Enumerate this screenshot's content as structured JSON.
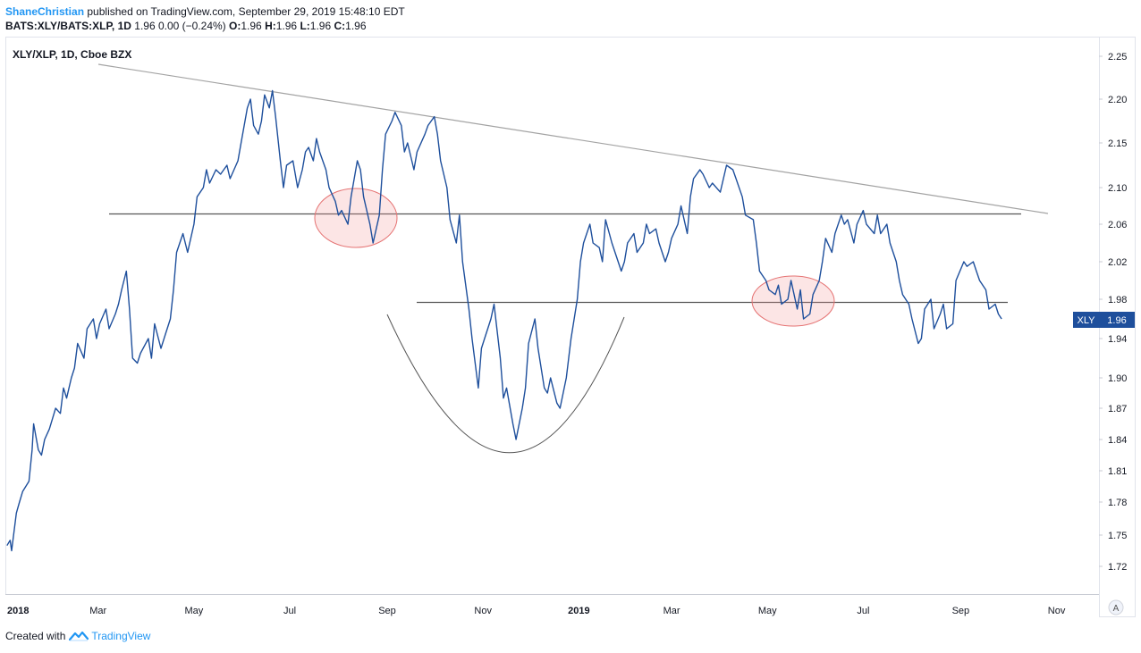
{
  "header": {
    "author": "ShaneChristian",
    "published": "published on TradingView.com, September 29, 2019 15:48:10 EDT",
    "symbol_line": "BATS:XLY/BATS:XLP, 1D",
    "price_change": "1.96 0.00 (−0.24%)",
    "ohlc": [
      {
        "k": "O:",
        "v": "1.96"
      },
      {
        "k": "H:",
        "v": "1.96"
      },
      {
        "k": "L:",
        "v": "1.96"
      },
      {
        "k": "C:",
        "v": "1.96"
      }
    ]
  },
  "footer": {
    "created_with": "Created with",
    "brand": "TradingView"
  },
  "chart_data": {
    "type": "line",
    "title": "XLY/XLP, 1D, Cboe BZX",
    "x_ticks": [
      "2018",
      "Mar",
      "May",
      "Jul",
      "Sep",
      "Nov",
      "2019",
      "Mar",
      "May",
      "Jul",
      "Sep",
      "Nov"
    ],
    "x_ticks_bold": [
      "2018",
      "2019"
    ],
    "y_ticks": [
      "2.25",
      "2.20",
      "2.15",
      "2.10",
      "2.06",
      "2.02",
      "1.98",
      "1.94",
      "1.90",
      "1.87",
      "1.84",
      "1.81",
      "1.78",
      "1.75",
      "1.72"
    ],
    "ylim": [
      1.7,
      2.26
    ],
    "last_price_label": {
      "symbol": "XLY",
      "value": "1.96"
    },
    "scale_mode_button": "A",
    "line_color": "#1e4f9c",
    "series": [
      {
        "name": "XLY/XLP",
        "points": [
          [
            "2018-01-02",
            1.74
          ],
          [
            "2018-01-04",
            1.745
          ],
          [
            "2018-01-05",
            1.735
          ],
          [
            "2018-01-08",
            1.77
          ],
          [
            "2018-01-10",
            1.78
          ],
          [
            "2018-01-12",
            1.79
          ],
          [
            "2018-01-16",
            1.8
          ],
          [
            "2018-01-18",
            1.83
          ],
          [
            "2018-01-19",
            1.855
          ],
          [
            "2018-01-22",
            1.83
          ],
          [
            "2018-01-24",
            1.825
          ],
          [
            "2018-01-26",
            1.84
          ],
          [
            "2018-01-29",
            1.85
          ],
          [
            "2018-01-31",
            1.86
          ],
          [
            "2018-02-02",
            1.87
          ],
          [
            "2018-02-05",
            1.865
          ],
          [
            "2018-02-07",
            1.89
          ],
          [
            "2018-02-09",
            1.88
          ],
          [
            "2018-02-12",
            1.9
          ],
          [
            "2018-02-14",
            1.91
          ],
          [
            "2018-02-16",
            1.935
          ],
          [
            "2018-02-20",
            1.92
          ],
          [
            "2018-02-22",
            1.95
          ],
          [
            "2018-02-26",
            1.96
          ],
          [
            "2018-02-28",
            1.94
          ],
          [
            "2018-03-02",
            1.955
          ],
          [
            "2018-03-06",
            1.97
          ],
          [
            "2018-03-08",
            1.95
          ],
          [
            "2018-03-12",
            1.965
          ],
          [
            "2018-03-14",
            1.975
          ],
          [
            "2018-03-16",
            1.99
          ],
          [
            "2018-03-19",
            2.01
          ],
          [
            "2018-03-21",
            1.97
          ],
          [
            "2018-03-23",
            1.92
          ],
          [
            "2018-03-26",
            1.915
          ],
          [
            "2018-03-28",
            1.925
          ],
          [
            "2018-04-02",
            1.94
          ],
          [
            "2018-04-04",
            1.92
          ],
          [
            "2018-04-06",
            1.955
          ],
          [
            "2018-04-10",
            1.93
          ],
          [
            "2018-04-13",
            1.945
          ],
          [
            "2018-04-16",
            1.96
          ],
          [
            "2018-04-18",
            1.99
          ],
          [
            "2018-04-20",
            2.03
          ],
          [
            "2018-04-24",
            2.05
          ],
          [
            "2018-04-27",
            2.03
          ],
          [
            "2018-05-01",
            2.06
          ],
          [
            "2018-05-03",
            2.09
          ],
          [
            "2018-05-07",
            2.1
          ],
          [
            "2018-05-09",
            2.12
          ],
          [
            "2018-05-11",
            2.105
          ],
          [
            "2018-05-15",
            2.12
          ],
          [
            "2018-05-18",
            2.115
          ],
          [
            "2018-05-22",
            2.125
          ],
          [
            "2018-05-24",
            2.11
          ],
          [
            "2018-05-29",
            2.13
          ],
          [
            "2018-05-31",
            2.15
          ],
          [
            "2018-06-04",
            2.19
          ],
          [
            "2018-06-06",
            2.2
          ],
          [
            "2018-06-08",
            2.17
          ],
          [
            "2018-06-11",
            2.16
          ],
          [
            "2018-06-13",
            2.175
          ],
          [
            "2018-06-15",
            2.205
          ],
          [
            "2018-06-18",
            2.19
          ],
          [
            "2018-06-20",
            2.21
          ],
          [
            "2018-06-22",
            2.18
          ],
          [
            "2018-06-25",
            2.13
          ],
          [
            "2018-06-27",
            2.1
          ],
          [
            "2018-06-29",
            2.125
          ],
          [
            "2018-07-03",
            2.13
          ],
          [
            "2018-07-06",
            2.1
          ],
          [
            "2018-07-09",
            2.12
          ],
          [
            "2018-07-11",
            2.14
          ],
          [
            "2018-07-13",
            2.145
          ],
          [
            "2018-07-16",
            2.13
          ],
          [
            "2018-07-18",
            2.155
          ],
          [
            "2018-07-20",
            2.14
          ],
          [
            "2018-07-24",
            2.12
          ],
          [
            "2018-07-26",
            2.1
          ],
          [
            "2018-07-30",
            2.085
          ],
          [
            "2018-08-01",
            2.07
          ],
          [
            "2018-08-03",
            2.075
          ],
          [
            "2018-08-07",
            2.06
          ],
          [
            "2018-08-09",
            2.09
          ],
          [
            "2018-08-13",
            2.13
          ],
          [
            "2018-08-15",
            2.12
          ],
          [
            "2018-08-17",
            2.09
          ],
          [
            "2018-08-21",
            2.06
          ],
          [
            "2018-08-23",
            2.04
          ],
          [
            "2018-08-27",
            2.07
          ],
          [
            "2018-08-29",
            2.12
          ],
          [
            "2018-08-31",
            2.16
          ],
          [
            "2018-09-04",
            2.175
          ],
          [
            "2018-09-06",
            2.185
          ],
          [
            "2018-09-10",
            2.17
          ],
          [
            "2018-09-12",
            2.14
          ],
          [
            "2018-09-14",
            2.15
          ],
          [
            "2018-09-18",
            2.12
          ],
          [
            "2018-09-20",
            2.14
          ],
          [
            "2018-09-25",
            2.16
          ],
          [
            "2018-09-27",
            2.17
          ],
          [
            "2018-10-01",
            2.18
          ],
          [
            "2018-10-03",
            2.16
          ],
          [
            "2018-10-05",
            2.13
          ],
          [
            "2018-10-09",
            2.1
          ],
          [
            "2018-10-11",
            2.065
          ],
          [
            "2018-10-15",
            2.04
          ],
          [
            "2018-10-17",
            2.07
          ],
          [
            "2018-10-19",
            2.02
          ],
          [
            "2018-10-23",
            1.97
          ],
          [
            "2018-10-25",
            1.94
          ],
          [
            "2018-10-29",
            1.89
          ],
          [
            "2018-10-31",
            1.93
          ],
          [
            "2018-11-02",
            1.94
          ],
          [
            "2018-11-06",
            1.96
          ],
          [
            "2018-11-08",
            1.975
          ],
          [
            "2018-11-12",
            1.92
          ],
          [
            "2018-11-14",
            1.88
          ],
          [
            "2018-11-16",
            1.89
          ],
          [
            "2018-11-20",
            1.855
          ],
          [
            "2018-11-22",
            1.84
          ],
          [
            "2018-11-26",
            1.87
          ],
          [
            "2018-11-28",
            1.89
          ],
          [
            "2018-11-30",
            1.935
          ],
          [
            "2018-12-04",
            1.96
          ],
          [
            "2018-12-06",
            1.93
          ],
          [
            "2018-12-10",
            1.89
          ],
          [
            "2018-12-12",
            1.885
          ],
          [
            "2018-12-14",
            1.9
          ],
          [
            "2018-12-18",
            1.875
          ],
          [
            "2018-12-20",
            1.87
          ],
          [
            "2018-12-24",
            1.9
          ],
          [
            "2018-12-27",
            1.94
          ],
          [
            "2018-12-31",
            1.98
          ],
          [
            "2019-01-02",
            2.02
          ],
          [
            "2019-01-04",
            2.04
          ],
          [
            "2019-01-08",
            2.06
          ],
          [
            "2019-01-10",
            2.04
          ],
          [
            "2019-01-14",
            2.035
          ],
          [
            "2019-01-16",
            2.02
          ],
          [
            "2019-01-18",
            2.065
          ],
          [
            "2019-01-22",
            2.04
          ],
          [
            "2019-01-24",
            2.03
          ],
          [
            "2019-01-28",
            2.01
          ],
          [
            "2019-01-30",
            2.02
          ],
          [
            "2019-02-01",
            2.04
          ],
          [
            "2019-02-05",
            2.05
          ],
          [
            "2019-02-07",
            2.03
          ],
          [
            "2019-02-11",
            2.04
          ],
          [
            "2019-02-13",
            2.06
          ],
          [
            "2019-02-15",
            2.05
          ],
          [
            "2019-02-19",
            2.055
          ],
          [
            "2019-02-21",
            2.04
          ],
          [
            "2019-02-25",
            2.02
          ],
          [
            "2019-02-27",
            2.03
          ],
          [
            "2019-03-01",
            2.045
          ],
          [
            "2019-03-05",
            2.06
          ],
          [
            "2019-03-07",
            2.08
          ],
          [
            "2019-03-11",
            2.05
          ],
          [
            "2019-03-13",
            2.09
          ],
          [
            "2019-03-15",
            2.11
          ],
          [
            "2019-03-19",
            2.12
          ],
          [
            "2019-03-21",
            2.115
          ],
          [
            "2019-03-25",
            2.1
          ],
          [
            "2019-03-27",
            2.105
          ],
          [
            "2019-04-01",
            2.095
          ],
          [
            "2019-04-03",
            2.11
          ],
          [
            "2019-04-05",
            2.125
          ],
          [
            "2019-04-09",
            2.12
          ],
          [
            "2019-04-11",
            2.11
          ],
          [
            "2019-04-15",
            2.09
          ],
          [
            "2019-04-17",
            2.07
          ],
          [
            "2019-04-22",
            2.065
          ],
          [
            "2019-04-24",
            2.04
          ],
          [
            "2019-04-26",
            2.01
          ],
          [
            "2019-04-30",
            2.0
          ],
          [
            "2019-05-02",
            1.99
          ],
          [
            "2019-05-06",
            1.985
          ],
          [
            "2019-05-08",
            1.995
          ],
          [
            "2019-05-10",
            1.975
          ],
          [
            "2019-05-14",
            1.98
          ],
          [
            "2019-05-16",
            2.0
          ],
          [
            "2019-05-20",
            1.97
          ],
          [
            "2019-05-22",
            1.99
          ],
          [
            "2019-05-24",
            1.96
          ],
          [
            "2019-05-28",
            1.965
          ],
          [
            "2019-05-30",
            1.985
          ],
          [
            "2019-06-03",
            2.0
          ],
          [
            "2019-06-05",
            2.02
          ],
          [
            "2019-06-07",
            2.045
          ],
          [
            "2019-06-11",
            2.03
          ],
          [
            "2019-06-13",
            2.05
          ],
          [
            "2019-06-17",
            2.07
          ],
          [
            "2019-06-19",
            2.06
          ],
          [
            "2019-06-21",
            2.065
          ],
          [
            "2019-06-25",
            2.04
          ],
          [
            "2019-06-27",
            2.06
          ],
          [
            "2019-07-01",
            2.075
          ],
          [
            "2019-07-03",
            2.06
          ],
          [
            "2019-07-08",
            2.05
          ],
          [
            "2019-07-10",
            2.07
          ],
          [
            "2019-07-12",
            2.05
          ],
          [
            "2019-07-16",
            2.06
          ],
          [
            "2019-07-18",
            2.04
          ],
          [
            "2019-07-22",
            2.02
          ],
          [
            "2019-07-24",
            2.0
          ],
          [
            "2019-07-26",
            1.985
          ],
          [
            "2019-07-30",
            1.975
          ],
          [
            "2019-08-01",
            1.96
          ],
          [
            "2019-08-05",
            1.935
          ],
          [
            "2019-08-07",
            1.94
          ],
          [
            "2019-08-09",
            1.97
          ],
          [
            "2019-08-13",
            1.98
          ],
          [
            "2019-08-15",
            1.95
          ],
          [
            "2019-08-19",
            1.965
          ],
          [
            "2019-08-21",
            1.975
          ],
          [
            "2019-08-23",
            1.95
          ],
          [
            "2019-08-27",
            1.955
          ],
          [
            "2019-08-29",
            2.0
          ],
          [
            "2019-09-03",
            2.02
          ],
          [
            "2019-09-05",
            2.015
          ],
          [
            "2019-09-09",
            2.02
          ],
          [
            "2019-09-11",
            2.01
          ],
          [
            "2019-09-13",
            2.0
          ],
          [
            "2019-09-17",
            1.99
          ],
          [
            "2019-09-19",
            1.97
          ],
          [
            "2019-09-23",
            1.975
          ],
          [
            "2019-09-25",
            1.965
          ],
          [
            "2019-09-27",
            1.96
          ]
        ]
      }
    ]
  }
}
